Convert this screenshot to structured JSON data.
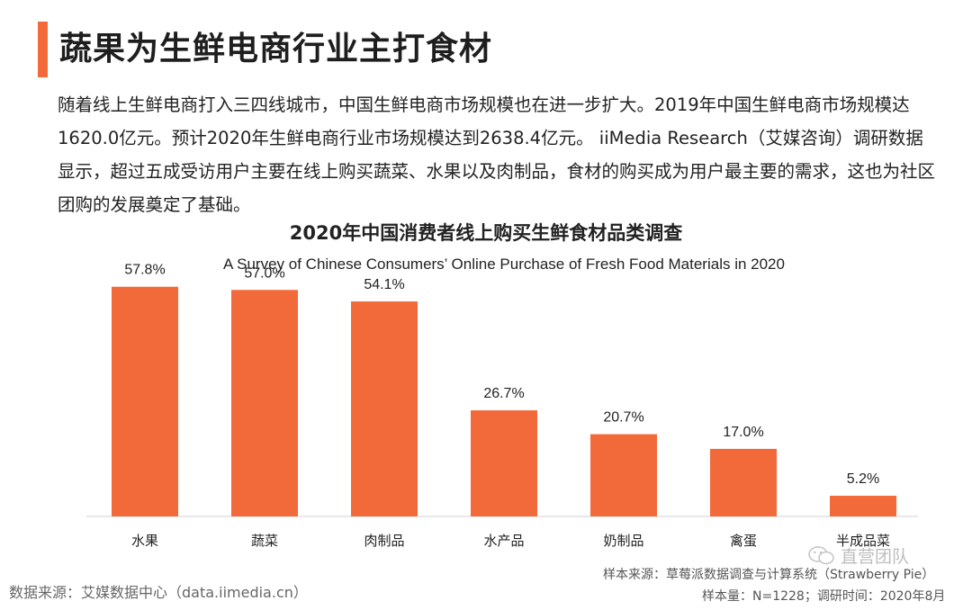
{
  "page": {
    "title": "蔬果为生鲜电商行业主打食材",
    "intro": "随着线上生鲜电商打入三四线城市，中国生鲜电商市场规模也在进一步扩大。2019年中国生鲜电商市场规模达1620.0亿元。预计2020年生鲜电商行业市场规模达到2638.4亿元。 iiMedia Research（艾媒咨询）调研数据显示，超过五成受访用户主要在线上购买蔬菜、水果以及肉制品，食材的购买成为用户最主要的需求，这也为社区团购的发展奠定了基础。"
  },
  "chart_data": {
    "type": "bar",
    "title": "2020年中国消费者线上购买生鲜食材品类调查",
    "subtitle": "A Survey of Chinese Consumers’ Online Purchase of Fresh Food Materials in 2020",
    "categories": [
      "水果",
      "蔬菜",
      "肉制品",
      "水产品",
      "奶制品",
      "禽蛋",
      "半成品菜"
    ],
    "values": [
      57.8,
      57.0,
      54.1,
      26.7,
      20.7,
      17.0,
      5.2
    ],
    "value_labels": [
      "57.8%",
      "57.0%",
      "54.1%",
      "26.7%",
      "20.7%",
      "17.0%",
      "5.2%"
    ],
    "ylim": [
      0,
      60
    ],
    "bar_color": "#f26a3a",
    "grid": false,
    "xlabel": "",
    "ylabel": ""
  },
  "footer": {
    "source": "数据来源：艾媒数据中心（data.iimedia.cn）",
    "sample_source": "样本来源：草莓派数据调查与计算系统（Strawberry Pie）",
    "sample_size": "样本量：N=1228；调研时间：2020年8月"
  },
  "watermark": {
    "text": "直营团队",
    "icon": "wechat-icon"
  },
  "colors": {
    "accent": "#f26a3a"
  }
}
